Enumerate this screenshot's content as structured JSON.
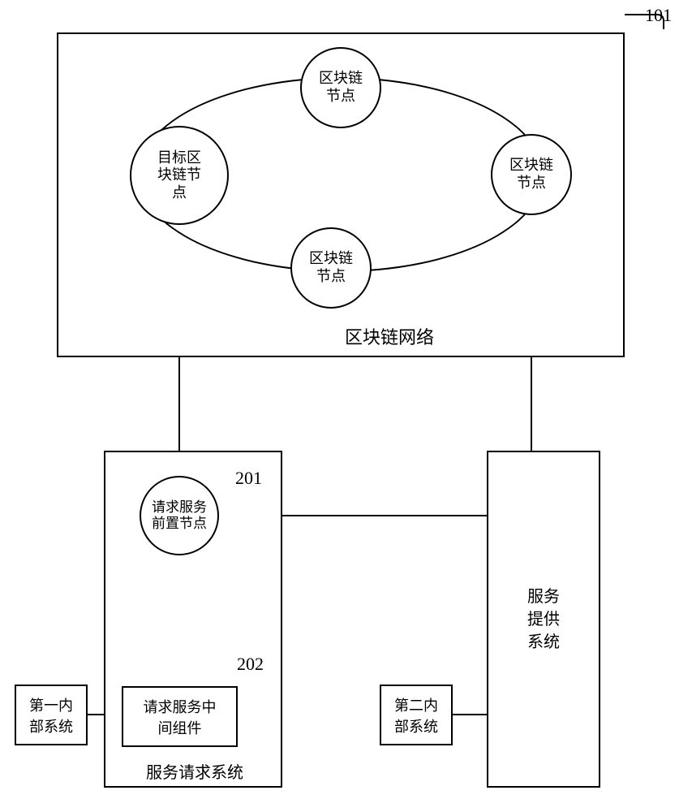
{
  "colors": {
    "stroke": "#000000",
    "background": "#ffffff"
  },
  "font": {
    "node_fontsize": 18,
    "label_fontsize": 20,
    "ref_fontsize": 22
  },
  "refs": {
    "network": "101",
    "front_node": "201",
    "middleware": "202"
  },
  "network": {
    "label": "区块链网络",
    "nodes": {
      "top": "区块链\n节点",
      "left": "目标区\n块链节\n点",
      "right": "区块链\n节点",
      "bottom": "区块链\n节点"
    }
  },
  "request_system": {
    "label": "服务请求系统",
    "front_node": "请求服务\n前置节点",
    "middleware": "请求服务中\n间组件"
  },
  "provider_system": {
    "label": "服务提供系统"
  },
  "first_internal": "第一内\n部系统",
  "second_internal": "第二内\n部系统"
}
